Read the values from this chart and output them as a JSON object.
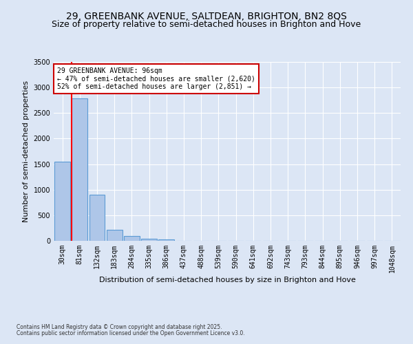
{
  "title": "29, GREENBANK AVENUE, SALTDEAN, BRIGHTON, BN2 8QS",
  "subtitle": "Size of property relative to semi-detached houses in Brighton and Hove",
  "xlabel": "Distribution of semi-detached houses by size in Brighton and Hove",
  "ylabel": "Number of semi-detached properties",
  "categories": [
    "30sqm",
    "81sqm",
    "132sqm",
    "183sqm",
    "284sqm",
    "335sqm",
    "386sqm",
    "437sqm",
    "488sqm",
    "539sqm",
    "590sqm",
    "641sqm",
    "692sqm",
    "743sqm",
    "793sqm",
    "844sqm",
    "895sqm",
    "946sqm",
    "997sqm",
    "1048sqm"
  ],
  "values": [
    1550,
    2780,
    900,
    210,
    90,
    40,
    28,
    0,
    0,
    0,
    0,
    0,
    0,
    0,
    0,
    0,
    0,
    0,
    0,
    0
  ],
  "bar_color": "#aec6e8",
  "bar_edgecolor": "#5b9bd5",
  "red_line_x": 0.55,
  "annotation_text": "29 GREENBANK AVENUE: 96sqm\n← 47% of semi-detached houses are smaller (2,620)\n52% of semi-detached houses are larger (2,851) →",
  "annotation_box_color": "#ffffff",
  "annotation_box_edgecolor": "#cc0000",
  "ylim": [
    0,
    3500
  ],
  "yticks": [
    0,
    500,
    1000,
    1500,
    2000,
    2500,
    3000,
    3500
  ],
  "background_color": "#dce6f5",
  "plot_background": "#dce6f5",
  "footnote1": "Contains HM Land Registry data © Crown copyright and database right 2025.",
  "footnote2": "Contains public sector information licensed under the Open Government Licence v3.0.",
  "title_fontsize": 10,
  "subtitle_fontsize": 9,
  "axis_fontsize": 8,
  "tick_fontsize": 7,
  "annotation_fontsize": 7
}
